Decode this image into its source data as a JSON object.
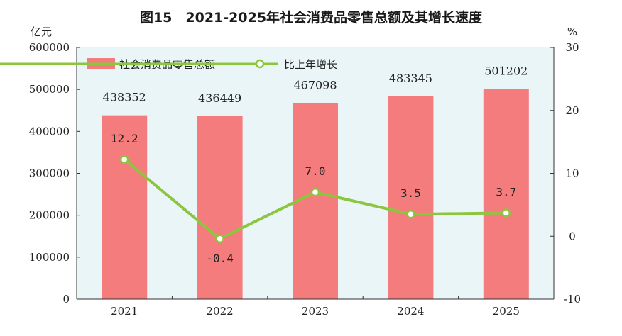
{
  "chart_data": {
    "type": "bar+line",
    "title": "图15　2021-2025年社会消费品零售总额及其增长速度",
    "categories": [
      "2021",
      "2022",
      "2023",
      "2024",
      "2025"
    ],
    "series": [
      {
        "name": "社会消费品零售总额",
        "type": "bar",
        "axis": "left",
        "values": [
          438352,
          436449,
          467098,
          483345,
          501202
        ],
        "labels": [
          "438352",
          "436449",
          "467098",
          "483345",
          "501202"
        ]
      },
      {
        "name": "比上年增长",
        "type": "line",
        "axis": "right",
        "values": [
          12.2,
          -0.4,
          7.0,
          3.5,
          3.7
        ],
        "labels": [
          "12.2",
          "-0.4",
          "7.0",
          "3.5",
          "3.7"
        ]
      }
    ],
    "left_axis": {
      "unit": "亿元",
      "ylim": [
        0,
        600000
      ],
      "ticks": [
        "0",
        "100000",
        "200000",
        "300000",
        "400000",
        "500000",
        "600000"
      ]
    },
    "right_axis": {
      "unit": "%",
      "ylim": [
        -10,
        30
      ],
      "ticks": [
        "-10",
        "0",
        "10",
        "20",
        "30"
      ]
    },
    "legend_position": "top-left",
    "grid": false,
    "colors": {
      "bar": "#f47c7c",
      "line": "#8cc63f",
      "plot_bg": "#eaf5f8",
      "axis": "#333333"
    }
  }
}
